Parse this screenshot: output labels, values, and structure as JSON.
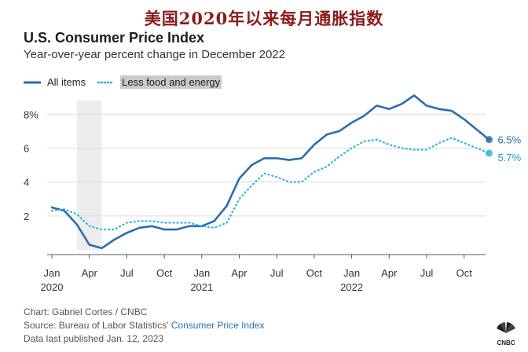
{
  "banner": "美国2020年以来每月通胀指数",
  "chart_data": {
    "type": "line",
    "title": "U.S. Consumer Price Index",
    "subtitle": "Year-over-year percent change in December 2022",
    "x_tick_labels": [
      {
        "month": 0,
        "line1": "Jan",
        "line2": "2020"
      },
      {
        "month": 3,
        "line1": "Apr",
        "line2": ""
      },
      {
        "month": 6,
        "line1": "Jul",
        "line2": ""
      },
      {
        "month": 9,
        "line1": "Oct",
        "line2": ""
      },
      {
        "month": 12,
        "line1": "Jan",
        "line2": "2021"
      },
      {
        "month": 15,
        "line1": "Apr",
        "line2": ""
      },
      {
        "month": 18,
        "line1": "Jul",
        "line2": ""
      },
      {
        "month": 21,
        "line1": "Oct",
        "line2": ""
      },
      {
        "month": 24,
        "line1": "Jan",
        "line2": "2022"
      },
      {
        "month": 27,
        "line1": "Apr",
        "line2": ""
      },
      {
        "month": 30,
        "line1": "Jul",
        "line2": ""
      },
      {
        "month": 33,
        "line1": "Oct",
        "line2": ""
      }
    ],
    "y_ticks": [
      {
        "value": 2,
        "label": "2"
      },
      {
        "value": 4,
        "label": "4"
      },
      {
        "value": 6,
        "label": "6"
      },
      {
        "value": 8,
        "label": "8%"
      }
    ],
    "ylim": [
      0,
      8.8
    ],
    "x_range_months": [
      0,
      35
    ],
    "recession_shading_months": [
      2,
      4
    ],
    "grid": "horizontal",
    "legend_position": "top-left",
    "series": [
      {
        "name": "All items",
        "color": "#2b6cb0",
        "style": "solid",
        "end_label": "6.5%",
        "values": [
          2.5,
          2.3,
          1.5,
          0.3,
          0.1,
          0.6,
          1.0,
          1.3,
          1.4,
          1.2,
          1.2,
          1.4,
          1.4,
          1.7,
          2.6,
          4.2,
          5.0,
          5.4,
          5.4,
          5.3,
          5.4,
          6.2,
          6.8,
          7.0,
          7.5,
          7.9,
          8.5,
          8.3,
          8.6,
          9.1,
          8.5,
          8.3,
          8.2,
          7.7,
          7.1,
          6.5
        ]
      },
      {
        "name": "Less food and energy",
        "color": "#2bb6d9",
        "style": "dotted",
        "end_label": "5.7%",
        "values": [
          2.3,
          2.4,
          2.1,
          1.4,
          1.2,
          1.2,
          1.6,
          1.7,
          1.7,
          1.6,
          1.6,
          1.6,
          1.4,
          1.3,
          1.6,
          3.0,
          3.8,
          4.5,
          4.3,
          4.0,
          4.0,
          4.6,
          4.9,
          5.5,
          6.0,
          6.4,
          6.5,
          6.2,
          6.0,
          5.9,
          5.9,
          6.3,
          6.6,
          6.3,
          6.0,
          5.7
        ]
      }
    ]
  },
  "footer": {
    "line1": "Chart: Gabriel Cortes / CNBC",
    "line2_prefix": "Source: Bureau of Labor Statistics' ",
    "line2_link": "Consumer Price Index",
    "line3": "Data last published Jan. 12, 2023"
  },
  "logo_text": "CNBC"
}
